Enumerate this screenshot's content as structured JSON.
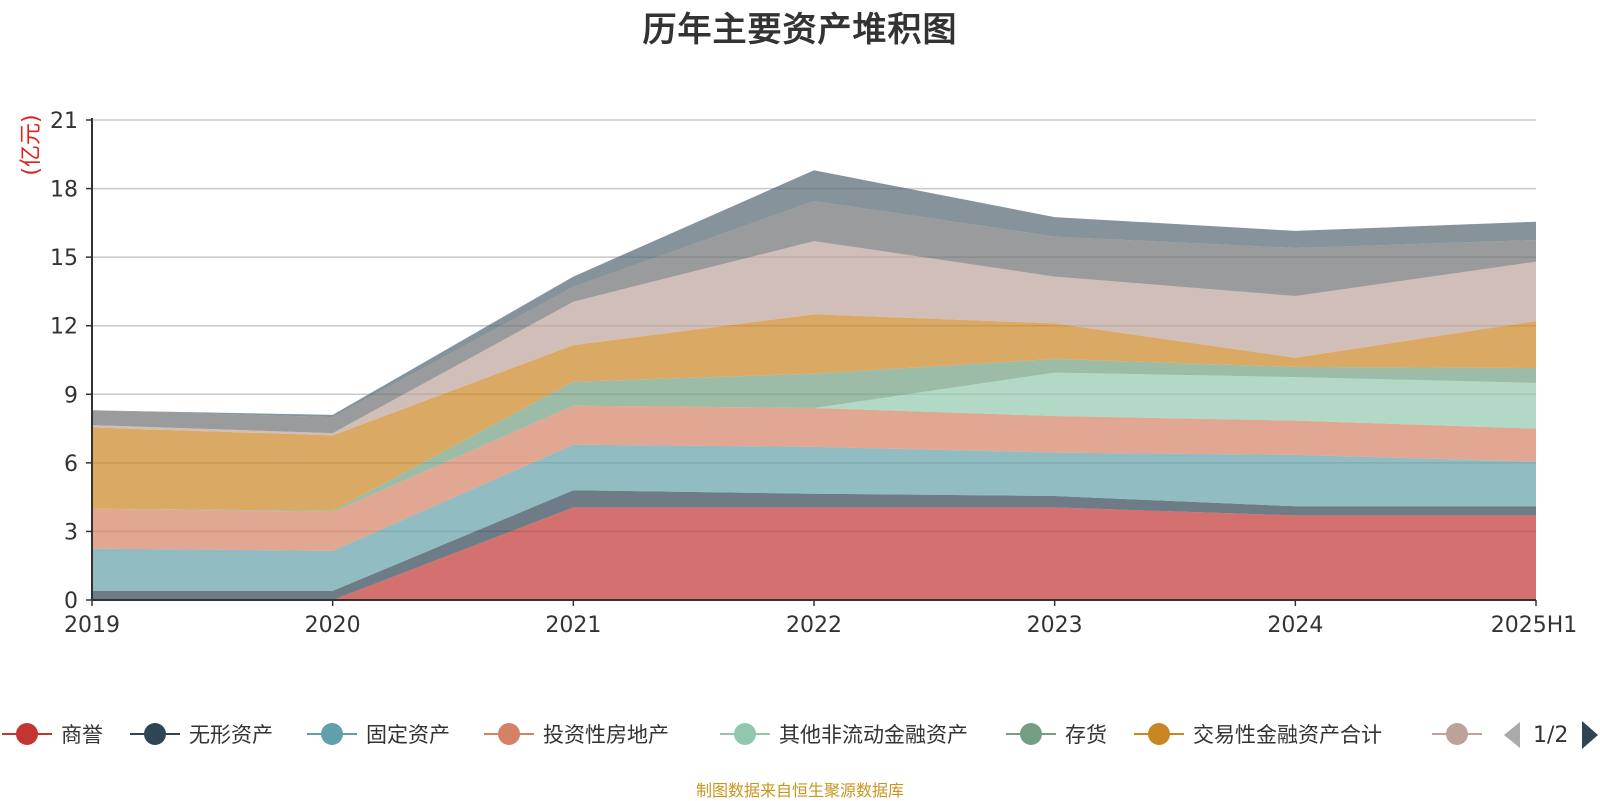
{
  "title": "历年主要资产堆积图",
  "source_note": "制图数据来自恒生聚源数据库",
  "legend_page": "1/2",
  "colors": {
    "商誉": "#c23531",
    "无形资产": "#2f4554",
    "固定资产": "#61a0a8",
    "投资性房地产": "#d48265",
    "其他非流动金融资产": "#91c7ae",
    "存货": "#749f83",
    "交易性金融资产合计": "#ca8622",
    "series8": "#bda29a",
    "series9": "#6e7074",
    "series10": "#546570"
  },
  "chart_data": {
    "type": "area",
    "stacked": true,
    "title": "历年主要资产堆积图",
    "ylabel": "(亿元)",
    "ylim": [
      0,
      21
    ],
    "yticks": [
      0,
      3,
      6,
      9,
      12,
      15,
      18,
      21
    ],
    "categories": [
      "2019",
      "2020",
      "2021",
      "2022",
      "2023",
      "2024",
      "2025H1"
    ],
    "grid": true,
    "legend_position": "bottom",
    "series": [
      {
        "name": "商誉",
        "values": [
          0,
          0,
          4.05,
          4.05,
          4.05,
          3.7,
          3.7
        ]
      },
      {
        "name": "无形资产",
        "values": [
          0.4,
          0.4,
          0.75,
          0.6,
          0.5,
          0.4,
          0.4
        ]
      },
      {
        "name": "固定资产",
        "values": [
          1.85,
          1.75,
          2.0,
          2.05,
          1.9,
          2.25,
          1.95
        ]
      },
      {
        "name": "投资性房地产",
        "values": [
          1.75,
          1.7,
          1.7,
          1.7,
          1.6,
          1.5,
          1.45
        ]
      },
      {
        "name": "其他非流动金融资产",
        "values": [
          0,
          0,
          0,
          0,
          1.9,
          1.9,
          2.0
        ]
      },
      {
        "name": "存货",
        "values": [
          0,
          0.05,
          1.05,
          1.5,
          0.6,
          0.45,
          0.65
        ]
      },
      {
        "name": "交易性金融资产合计",
        "values": [
          3.55,
          3.3,
          1.6,
          2.6,
          1.55,
          0.4,
          2.05
        ]
      },
      {
        "values": [
          0.1,
          0.1,
          1.9,
          3.2,
          2.05,
          2.7,
          2.6
        ]
      },
      {
        "values": [
          0.65,
          0.7,
          0.65,
          1.75,
          1.75,
          2.1,
          0.95
        ]
      },
      {
        "values": [
          0,
          0.1,
          0.45,
          1.35,
          0.85,
          0.75,
          0.8
        ]
      }
    ]
  }
}
